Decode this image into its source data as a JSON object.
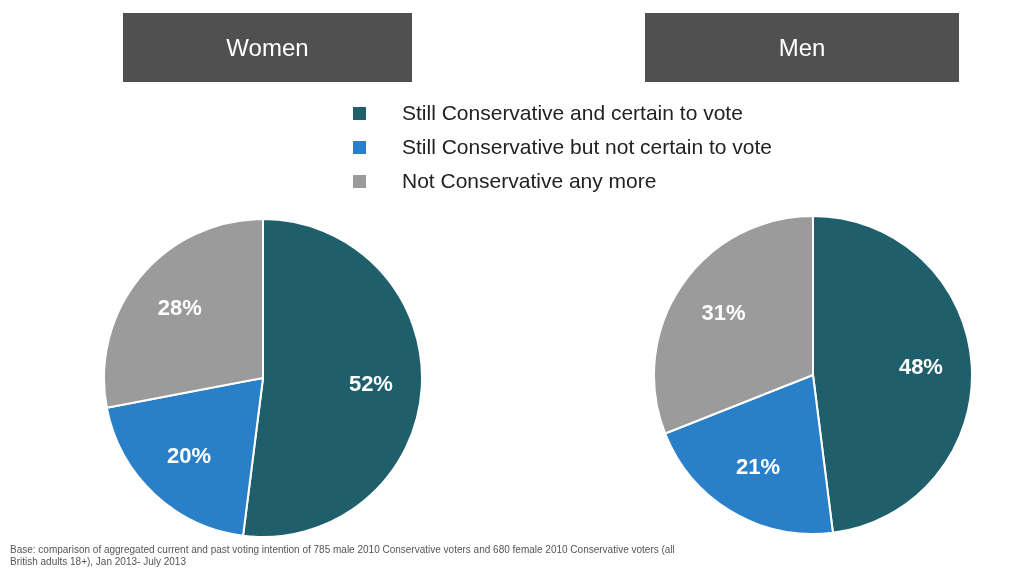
{
  "chart_data": [
    {
      "type": "pie",
      "title": "Women",
      "categories": [
        "Still Conservative and certain to vote",
        "Still Conservative but not certain to vote",
        "Not Conservative any more"
      ],
      "values": [
        52,
        20,
        28
      ],
      "value_labels": [
        "52%",
        "20%",
        "28%"
      ],
      "colors": [
        "#1f5f6b",
        "#2a80c8",
        "#9b9b9b"
      ],
      "legend": "top",
      "annotations": [
        "Base: comparison of aggregated current and past voting intention of 785 male 2010 Conservative voters and 680 female 2010 Conservative voters (all British adults 18+), Jan 2013- July 2013"
      ]
    },
    {
      "type": "pie",
      "title": "Men",
      "categories": [
        null,
        null,
        null
      ],
      "values": [
        48,
        21,
        31
      ],
      "value_labels": [
        "48%",
        "21%",
        "31%"
      ],
      "colors": [
        "#1f5f6b",
        "#2a80c8",
        "#9b9b9b"
      ]
    }
  ]
}
